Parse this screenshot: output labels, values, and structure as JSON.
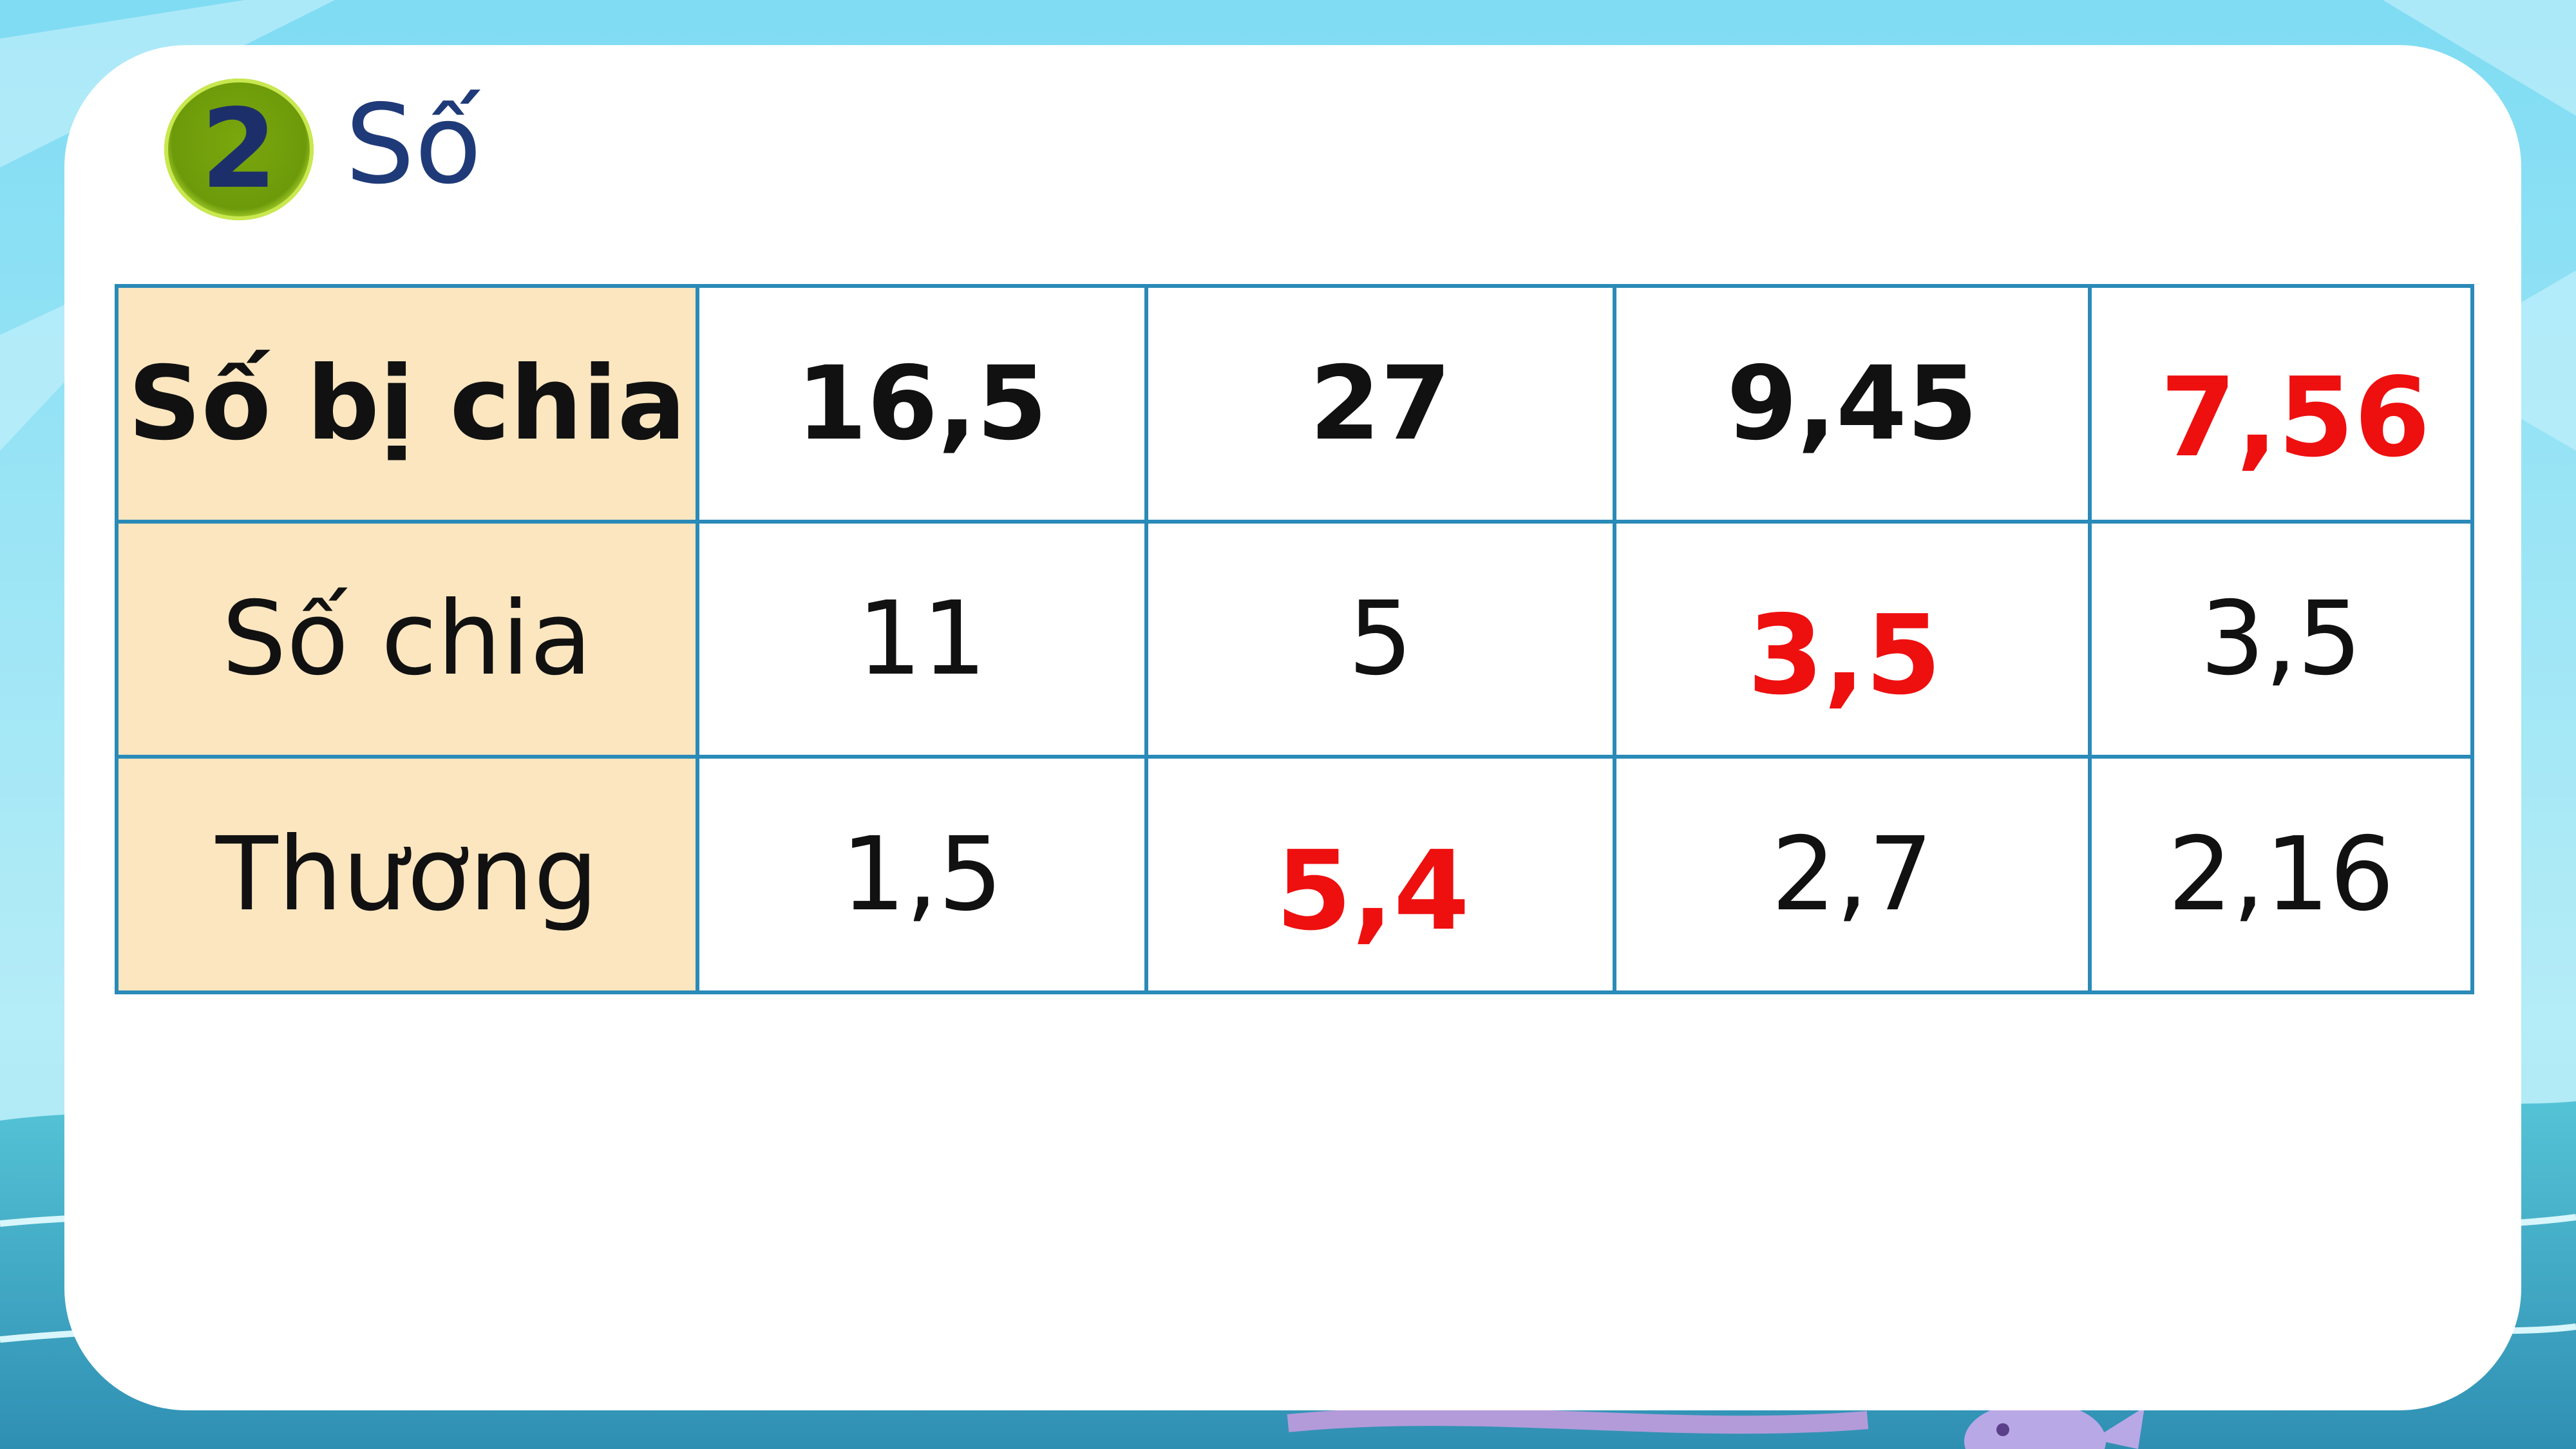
{
  "colors": {
    "answer": "#ee0f0f",
    "header_fill": "#fbe6c0",
    "table_border": "#2a8ab8",
    "heading_text": "#1f3a78",
    "badge_fill": "#6d9a0a"
  },
  "exercise": {
    "number": "2",
    "title": "Số"
  },
  "table": {
    "rows": [
      {
        "label": "Số bị chia",
        "cells": [
          {
            "value": "16,5",
            "answer": false
          },
          {
            "value": "27",
            "answer": false
          },
          {
            "value": "9,45",
            "answer": false
          },
          {
            "value": "7,56",
            "answer": true
          }
        ]
      },
      {
        "label": "Số chia",
        "cells": [
          {
            "value": "11",
            "answer": false
          },
          {
            "value": "5",
            "answer": false
          },
          {
            "value": "3,5",
            "answer": true
          },
          {
            "value": "3,5",
            "answer": false
          }
        ]
      },
      {
        "label": "Thương",
        "cells": [
          {
            "value": "1,5",
            "answer": false
          },
          {
            "value": "5,4",
            "answer": true
          },
          {
            "value": "2,7",
            "answer": false
          },
          {
            "value": "2,16",
            "answer": false
          }
        ]
      }
    ]
  }
}
